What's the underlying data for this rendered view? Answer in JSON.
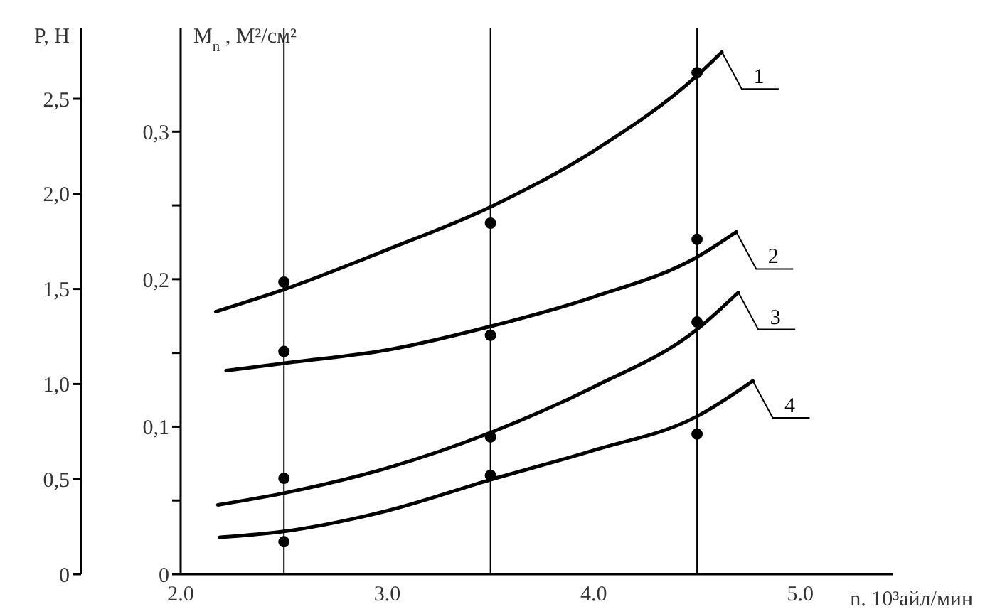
{
  "chart_data": {
    "type": "line",
    "xlabel": "n. 10³айл/мин",
    "ylabel": "M$_{n}$, М²/см²",
    "y2label": "P, H",
    "xlim": [
      2.0,
      5.45
    ],
    "xticks": [
      {
        "value": 2.0,
        "label": "2.0"
      },
      {
        "value": 3.0,
        "label": "3.0"
      },
      {
        "value": 4.0,
        "label": "4.0"
      },
      {
        "value": 5.0,
        "label": "5.0"
      }
    ],
    "ylim": [
      0,
      0.37
    ],
    "yticks": [
      0,
      {
        "value": 0.05,
        "label": null
      },
      {
        "value": 0.1,
        "label": "0,1"
      },
      {
        "value": 0.15,
        "label": null
      },
      {
        "value": 0.2,
        "label": "0,2"
      },
      {
        "value": 0.25,
        "label": null
      },
      {
        "value": 0.3,
        "label": "0,3"
      }
    ],
    "y2lim": [
      0,
      2.87
    ],
    "y2ticks": [
      0,
      {
        "value": 0.5,
        "label": "0,5"
      },
      {
        "value": 1.0,
        "label": "1,0"
      },
      {
        "value": 1.5,
        "label": "1,5"
      },
      {
        "value": 2.0,
        "label": "2,0"
      },
      {
        "value": 2.5,
        "label": "2,5"
      }
    ],
    "grid": false,
    "ref_lines": [
      {
        "axis": "x",
        "value": 2.5,
        "color": "#000000"
      },
      {
        "axis": "x",
        "value": 3.5,
        "color": "#000000"
      },
      {
        "axis": "x",
        "value": 4.5,
        "color": "#000000"
      }
    ],
    "series": [
      {
        "name": "1",
        "marker": "none",
        "color": "#000000",
        "x": [
          2.17,
          2.5,
          3.0,
          3.5,
          4.0,
          4.5,
          4.62
        ],
        "values": [
          0.178,
          0.193,
          0.22,
          0.249,
          0.287,
          0.338,
          0.354
        ]
      },
      {
        "name": "2",
        "marker": "none",
        "color": "#000000",
        "x": [
          2.22,
          2.5,
          3.0,
          3.5,
          4.0,
          4.5,
          4.69
        ],
        "values": [
          0.138,
          0.143,
          0.152,
          0.168,
          0.188,
          0.215,
          0.232
        ]
      },
      {
        "name": "3",
        "marker": "none",
        "color": "#000000",
        "x": [
          2.18,
          2.5,
          3.0,
          3.5,
          4.0,
          4.5,
          4.7
        ],
        "values": [
          0.047,
          0.055,
          0.072,
          0.096,
          0.127,
          0.166,
          0.191
        ]
      },
      {
        "name": "4",
        "marker": "none",
        "color": "#000000",
        "x": [
          2.19,
          2.5,
          3.0,
          3.5,
          4.0,
          4.5,
          4.77
        ],
        "values": [
          0.025,
          0.029,
          0.043,
          0.064,
          0.084,
          0.107,
          0.131
        ]
      },
      {
        "type": "scatter",
        "marker": "circle",
        "color": "#000000",
        "x": [
          2.5,
          3.5,
          4.5
        ],
        "values": [
          0.198,
          0.238,
          0.34
        ]
      },
      {
        "type": "scatter",
        "marker": "circle",
        "color": "#000000",
        "x": [
          2.5,
          3.5,
          4.5
        ],
        "values": [
          0.151,
          0.162,
          0.227
        ]
      },
      {
        "type": "scatter",
        "marker": "circle",
        "color": "#000000",
        "x": [
          2.5,
          3.5,
          4.5
        ],
        "values": [
          0.065,
          0.093,
          0.171
        ]
      },
      {
        "type": "scatter",
        "marker": "circle",
        "color": "#000000",
        "x": [
          2.5,
          3.5,
          4.5
        ],
        "values": [
          0.022,
          0.067,
          0.095
        ]
      }
    ]
  }
}
